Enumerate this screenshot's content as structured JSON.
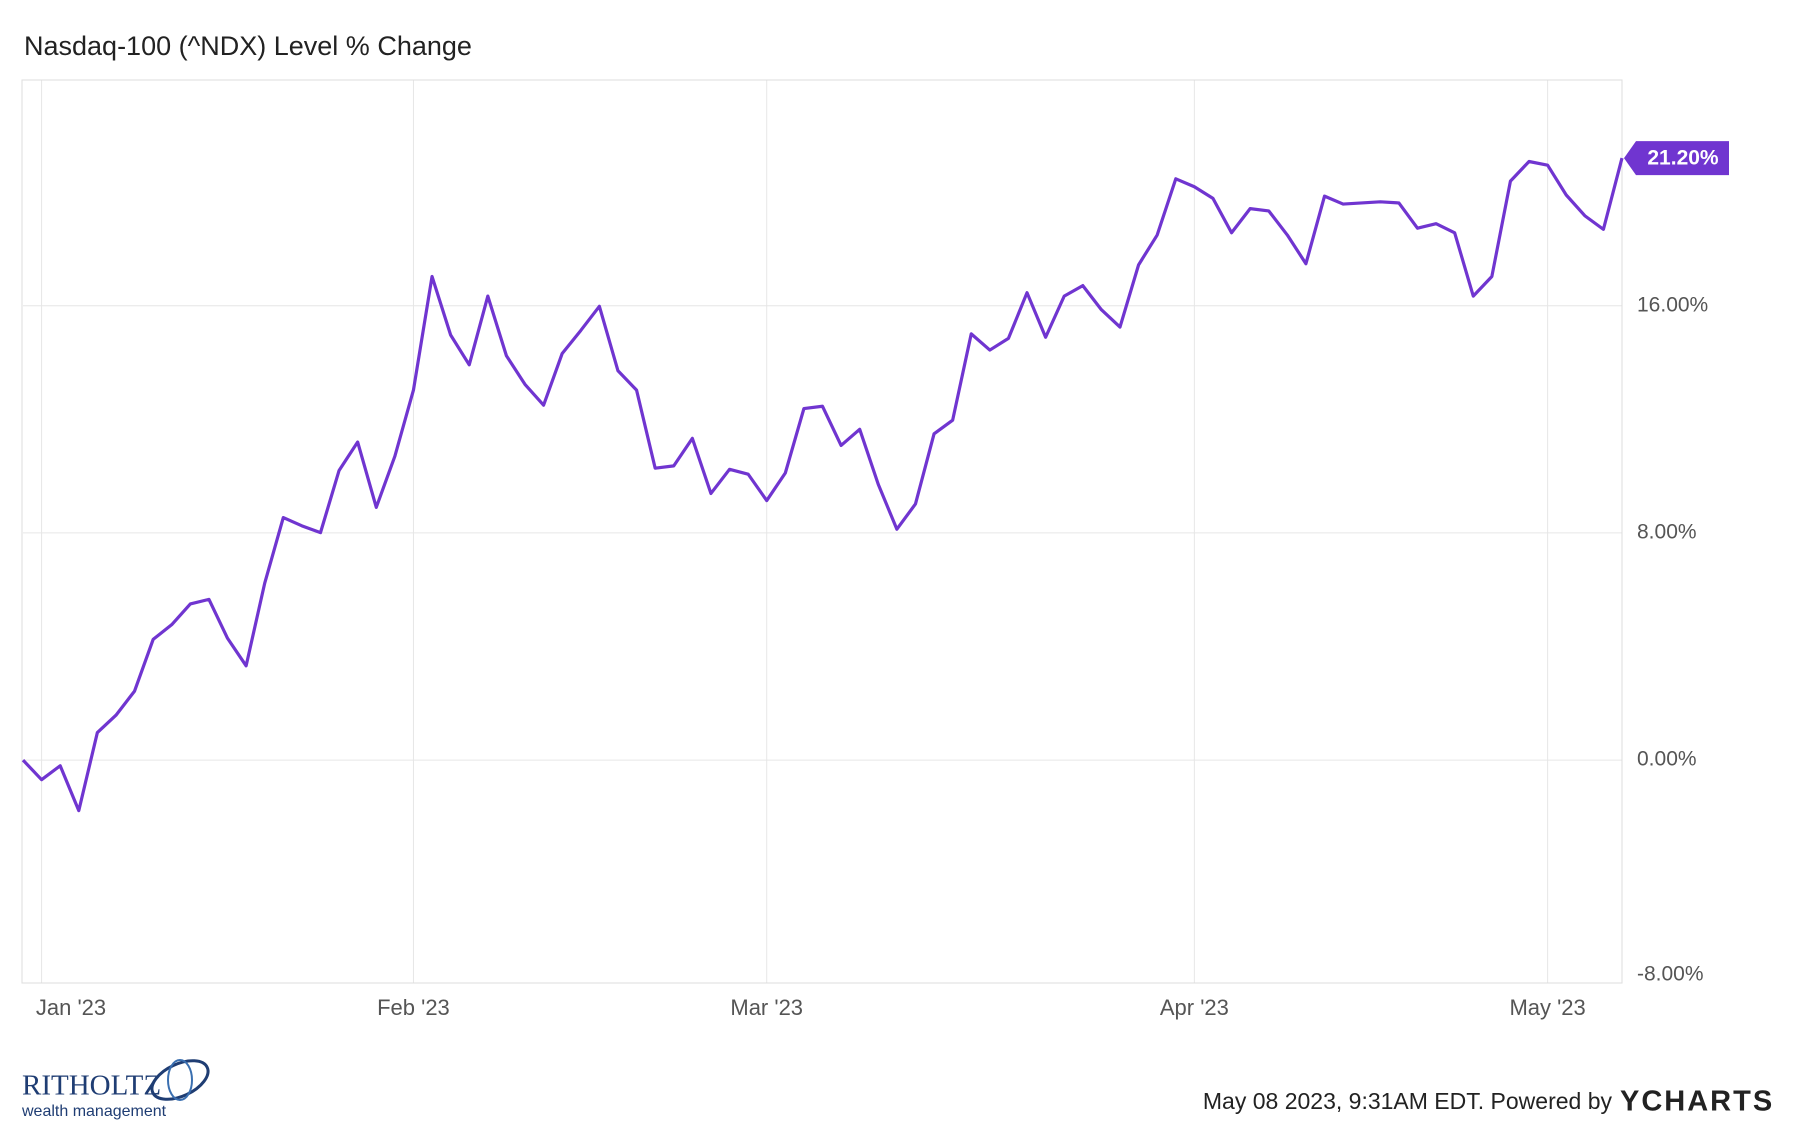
{
  "chart_data": {
    "type": "line",
    "title": "Nasdaq-100 (^NDX) Level % Change",
    "categories": [
      null,
      "Jan '23",
      null,
      null,
      null,
      null,
      null,
      null,
      null,
      null,
      null,
      null,
      null,
      null,
      null,
      null,
      null,
      null,
      null,
      null,
      null,
      "Feb '23",
      null,
      null,
      null,
      null,
      null,
      null,
      null,
      null,
      null,
      null,
      null,
      null,
      null,
      null,
      null,
      null,
      null,
      null,
      "Mar '23",
      null,
      null,
      null,
      null,
      null,
      null,
      null,
      null,
      null,
      null,
      null,
      null,
      null,
      null,
      null,
      null,
      null,
      null,
      null,
      null,
      null,
      null,
      "Apr '23",
      null,
      null,
      null,
      null,
      null,
      null,
      null,
      null,
      null,
      null,
      null,
      null,
      null,
      null,
      null,
      null,
      null,
      null,
      "May '23",
      null,
      null,
      null,
      null
    ],
    "series": [
      {
        "name": "Nasdaq-100 (^NDX) Level % Change",
        "color": "#7035d0",
        "values": [
          0,
          -0.69,
          -0.2,
          -1.78,
          0.97,
          1.58,
          2.43,
          4.25,
          4.77,
          5.5,
          5.66,
          4.29,
          3.32,
          6.23,
          8.54,
          8.25,
          8.01,
          10.2,
          11.2,
          8.9,
          10.7,
          13.03,
          17.03,
          14.97,
          13.92,
          16.34,
          14.24,
          13.23,
          12.5,
          14.32,
          15.13,
          15.98,
          13.71,
          13.03,
          10.28,
          10.36,
          11.33,
          9.39,
          10.24,
          10.07,
          9.14,
          10.11,
          12.38,
          12.46,
          11.08,
          11.65,
          9.71,
          8.13,
          9.02,
          11.49,
          11.97,
          15.01,
          14.44,
          14.85,
          16.46,
          14.89,
          16.34,
          16.71,
          15.86,
          15.25,
          17.44,
          18.49,
          20.47,
          20.19,
          19.78,
          18.57,
          19.42,
          19.34,
          18.49,
          17.48,
          19.86,
          19.58,
          19.62,
          19.66,
          19.62,
          18.73,
          18.89,
          18.57,
          16.34,
          17.03,
          20.39,
          21.08,
          20.95,
          19.9,
          19.17,
          18.69,
          21.2
        ],
        "value_labels": [
          null,
          null,
          null,
          null,
          null,
          null,
          null,
          null,
          null,
          null,
          null,
          null,
          null,
          null,
          null,
          null,
          null,
          null,
          null,
          null,
          null,
          null,
          null,
          null,
          null,
          null,
          null,
          null,
          null,
          null,
          null,
          null,
          null,
          null,
          null,
          null,
          null,
          null,
          null,
          null,
          null,
          null,
          null,
          null,
          null,
          null,
          null,
          null,
          null,
          null,
          null,
          null,
          null,
          null,
          null,
          null,
          null,
          null,
          null,
          null,
          null,
          null,
          null,
          null,
          null,
          null,
          null,
          null,
          null,
          null,
          null,
          null,
          null,
          null,
          null,
          null,
          null,
          null,
          null,
          null,
          null,
          null,
          null,
          null,
          null,
          null,
          "21.20%"
        ]
      }
    ],
    "ylim": [
      -7.85,
      23.95
    ],
    "yticks": [
      {
        "value": -8,
        "label": "-8.00%"
      },
      {
        "value": 0,
        "label": "0.00%"
      },
      {
        "value": 8,
        "label": "8.00%"
      },
      {
        "value": 16,
        "label": "16.00%"
      }
    ],
    "grid": true
  },
  "branding": {
    "logo": "RITHOLTZ",
    "logo_sub": "wealth management",
    "footer": "May 08 2023, 9:31AM EDT. Powered by",
    "brand": "YCHARTS"
  }
}
